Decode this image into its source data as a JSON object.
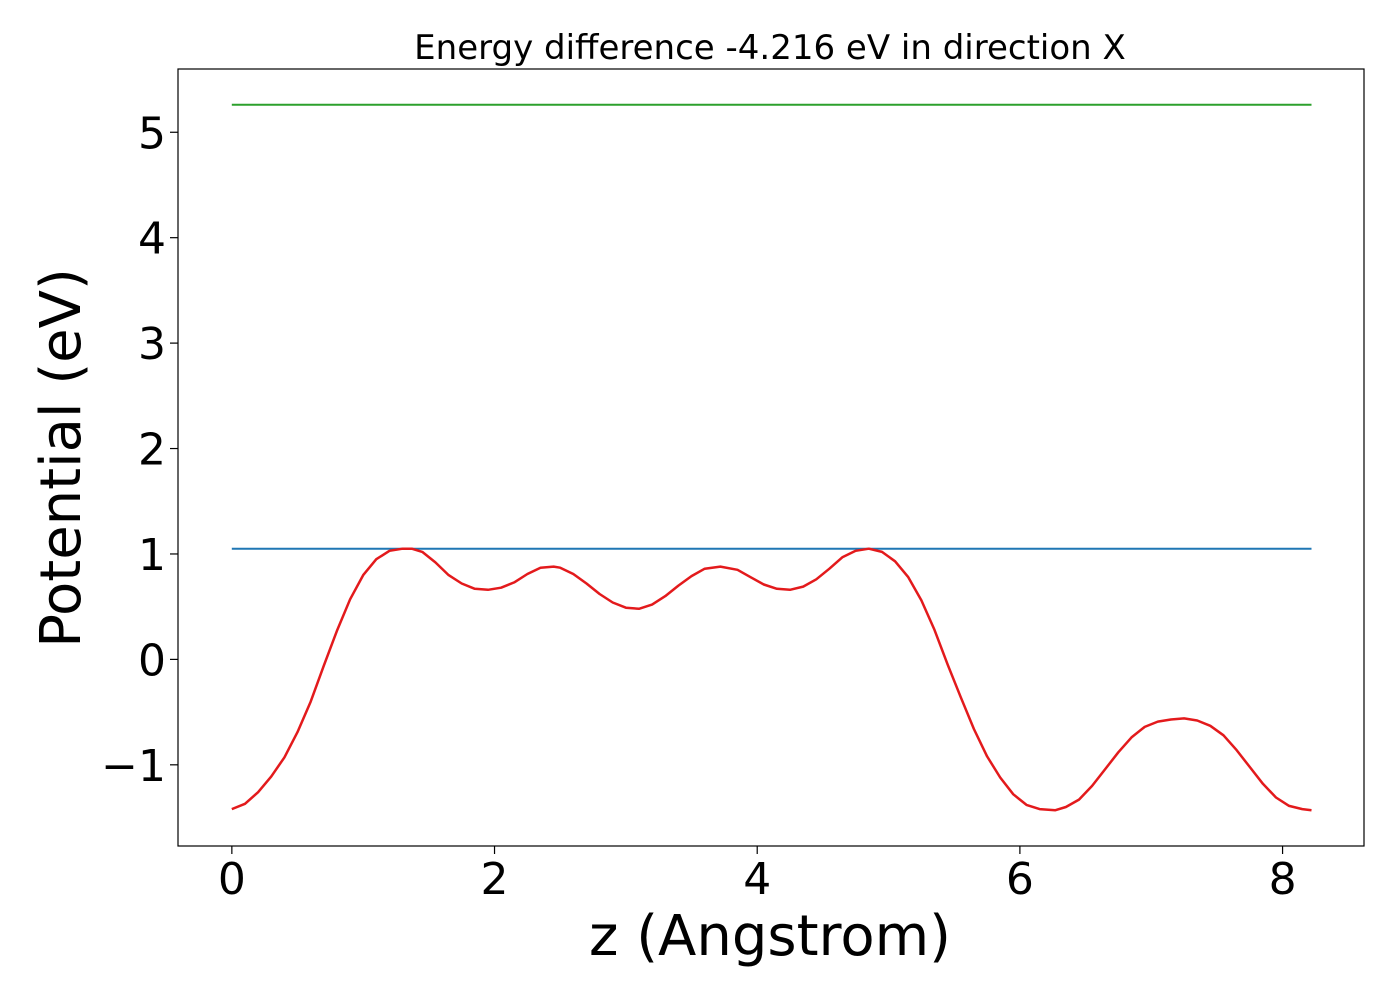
{
  "chart_data": {
    "type": "line",
    "title": "Energy difference -4.216 eV in direction X",
    "xlabel": "z (Angstrom)",
    "ylabel": "Potential (eV)",
    "xlim": [
      -0.41,
      8.62
    ],
    "ylim": [
      -1.77,
      5.6
    ],
    "xticks": [
      0,
      2,
      4,
      6,
      8
    ],
    "yticks": [
      -1,
      0,
      1,
      2,
      3,
      4,
      5
    ],
    "ytick_labels": [
      "−1",
      "0",
      "1",
      "2",
      "3",
      "4",
      "5"
    ],
    "grid": false,
    "series": [
      {
        "color": "#2ca02c",
        "style": "hline",
        "x": [
          0,
          8.22
        ],
        "y": [
          5.26,
          5.26
        ]
      },
      {
        "color": "#1f77b4",
        "style": "hline",
        "x": [
          0,
          8.22
        ],
        "y": [
          1.05,
          1.05
        ]
      },
      {
        "color": "#e31a1c",
        "style": "line",
        "x": [
          0,
          0.1,
          0.2,
          0.3,
          0.4,
          0.5,
          0.6,
          0.7,
          0.8,
          0.9,
          1.0,
          1.1,
          1.2,
          1.3,
          1.37,
          1.45,
          1.55,
          1.65,
          1.75,
          1.85,
          1.95,
          2.05,
          2.15,
          2.25,
          2.35,
          2.45,
          2.5,
          2.6,
          2.7,
          2.8,
          2.9,
          3.0,
          3.1,
          3.2,
          3.3,
          3.4,
          3.5,
          3.6,
          3.72,
          3.85,
          3.95,
          4.05,
          4.15,
          4.25,
          4.35,
          4.45,
          4.55,
          4.65,
          4.75,
          4.85,
          4.95,
          5.05,
          5.15,
          5.25,
          5.35,
          5.45,
          5.55,
          5.65,
          5.75,
          5.85,
          5.95,
          6.05,
          6.15,
          6.27,
          6.35,
          6.45,
          6.55,
          6.65,
          6.75,
          6.85,
          6.95,
          7.05,
          7.15,
          7.25,
          7.35,
          7.45,
          7.55,
          7.65,
          7.75,
          7.85,
          7.95,
          8.05,
          8.15,
          8.22
        ],
        "y": [
          -1.42,
          -1.37,
          -1.26,
          -1.11,
          -0.93,
          -0.69,
          -0.4,
          -0.06,
          0.27,
          0.57,
          0.8,
          0.95,
          1.03,
          1.05,
          1.05,
          1.02,
          0.92,
          0.8,
          0.72,
          0.67,
          0.66,
          0.68,
          0.73,
          0.81,
          0.87,
          0.88,
          0.87,
          0.81,
          0.72,
          0.62,
          0.54,
          0.49,
          0.48,
          0.52,
          0.6,
          0.7,
          0.79,
          0.86,
          0.88,
          0.85,
          0.78,
          0.71,
          0.67,
          0.66,
          0.69,
          0.76,
          0.86,
          0.97,
          1.03,
          1.05,
          1.02,
          0.93,
          0.78,
          0.56,
          0.28,
          -0.05,
          -0.36,
          -0.66,
          -0.92,
          -1.12,
          -1.28,
          -1.38,
          -1.42,
          -1.43,
          -1.4,
          -1.33,
          -1.2,
          -1.04,
          -0.88,
          -0.74,
          -0.64,
          -0.59,
          -0.57,
          -0.56,
          -0.58,
          -0.63,
          -0.72,
          -0.86,
          -1.02,
          -1.18,
          -1.31,
          -1.39,
          -1.42,
          -1.43
        ]
      }
    ]
  }
}
